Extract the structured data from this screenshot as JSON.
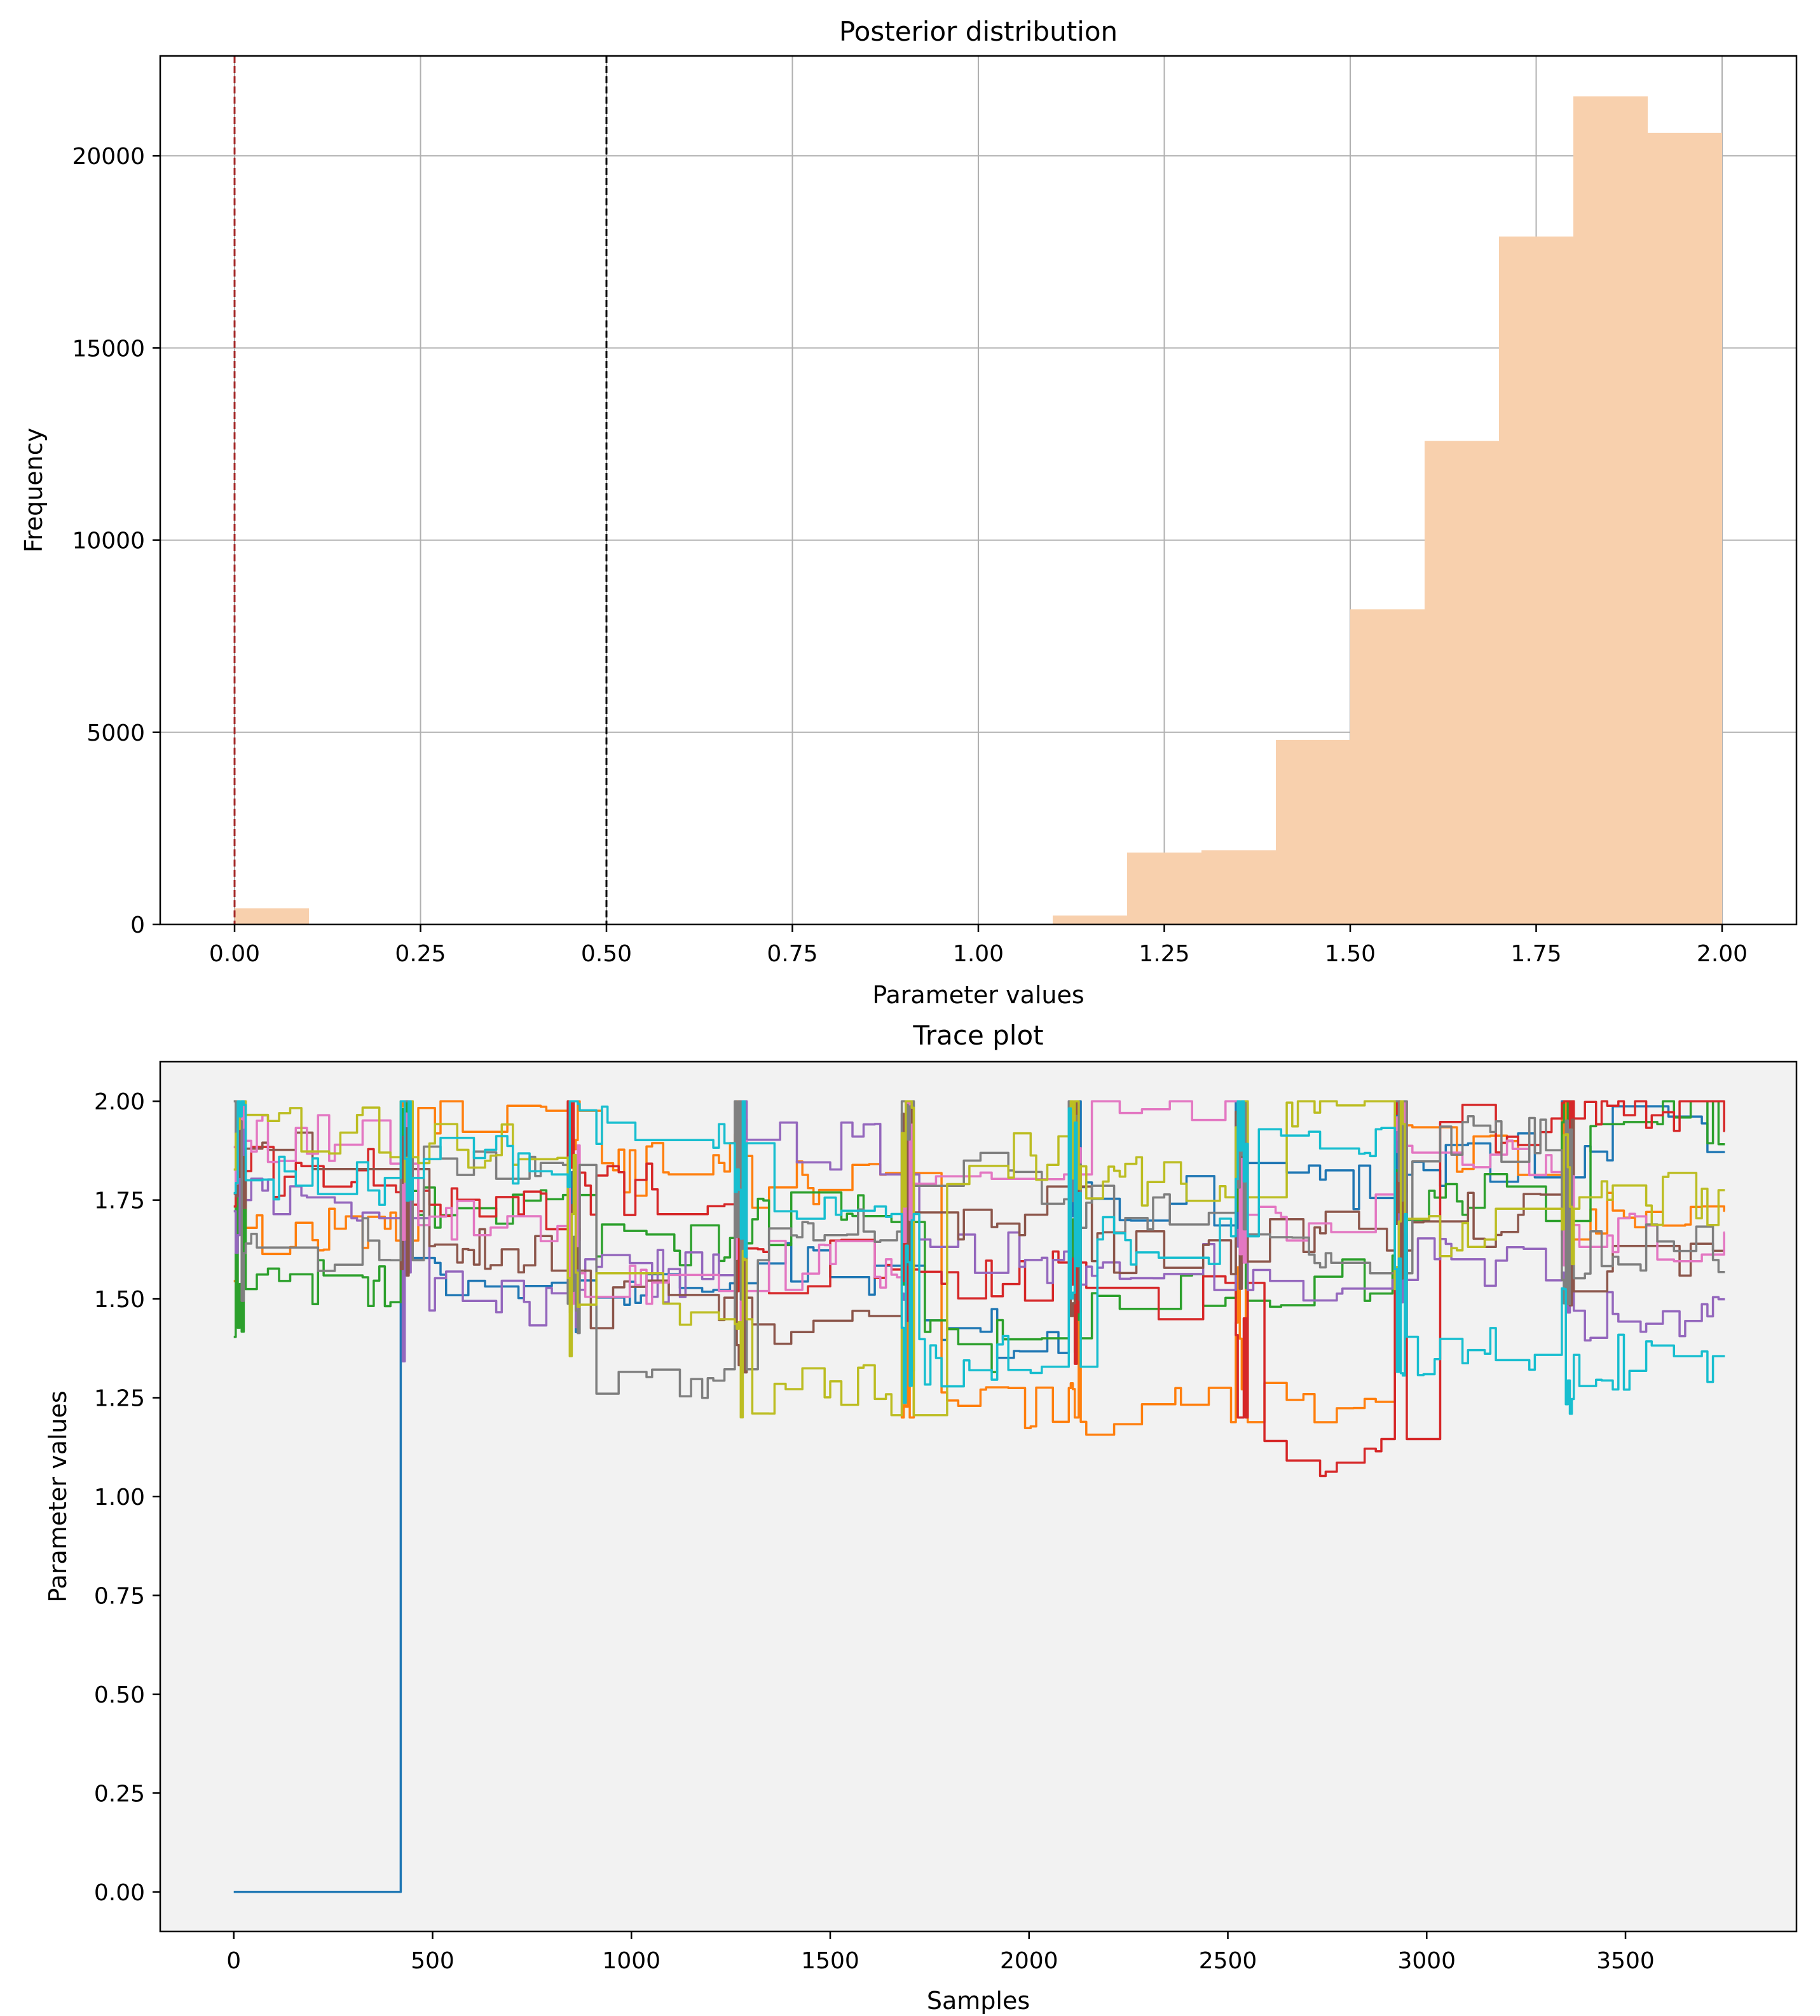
{
  "chart_data": [
    {
      "type": "bar",
      "title": "Posterior distribution",
      "xlabel": "Parameter values",
      "ylabel": "Frequency",
      "xlim": [
        -0.1,
        2.1
      ],
      "ylim": [
        0,
        22600
      ],
      "xticks": [
        "0.00",
        "0.25",
        "0.50",
        "0.75",
        "1.00",
        "1.25",
        "1.50",
        "1.75",
        "2.00"
      ],
      "xtick_values": [
        0,
        0.25,
        0.5,
        0.75,
        1.0,
        1.25,
        1.5,
        1.75,
        2.0
      ],
      "yticks": [
        "0",
        "5000",
        "10000",
        "15000",
        "20000"
      ],
      "ytick_values": [
        0,
        5000,
        10000,
        15000,
        20000
      ],
      "grid": true,
      "bar_color": "#f8d0ad",
      "bins": [
        {
          "x0": 0.0,
          "x1": 0.1,
          "value": 420
        },
        {
          "x0": 1.1,
          "x1": 1.2,
          "value": 230
        },
        {
          "x0": 1.2,
          "x1": 1.3,
          "value": 1870
        },
        {
          "x0": 1.3,
          "x1": 1.4,
          "value": 1930
        },
        {
          "x0": 1.4,
          "x1": 1.5,
          "value": 4800
        },
        {
          "x0": 1.5,
          "x1": 1.6,
          "value": 8200
        },
        {
          "x0": 1.6,
          "x1": 1.7,
          "value": 12580
        },
        {
          "x0": 1.7,
          "x1": 1.8,
          "value": 17900
        },
        {
          "x0": 1.8,
          "x1": 1.9,
          "value": 21550
        },
        {
          "x0": 1.9,
          "x1": 2.0,
          "value": 20600
        }
      ],
      "vlines": [
        {
          "x": 0.0,
          "color": "#a52a2a",
          "style": "dashed"
        },
        {
          "x": 0.5,
          "color": "#000000",
          "style": "dashed"
        }
      ]
    },
    {
      "type": "line",
      "title": "Trace plot",
      "xlabel": "Samples",
      "ylabel": "Parameter values",
      "xlim": [
        -185,
        3930
      ],
      "ylim": [
        -0.1,
        2.1
      ],
      "xticks": [
        "0",
        "500",
        "1000",
        "1500",
        "2000",
        "2500",
        "3000",
        "3500"
      ],
      "xtick_values": [
        0,
        500,
        1000,
        1500,
        2000,
        2500,
        3000,
        3500
      ],
      "yticks": [
        "0.00",
        "0.25",
        "0.50",
        "0.75",
        "1.00",
        "1.25",
        "1.50",
        "1.75",
        "2.00"
      ],
      "ytick_values": [
        0,
        0.25,
        0.5,
        0.75,
        1.0,
        1.25,
        1.5,
        1.75,
        2.0
      ],
      "grid": false,
      "background": "#f2f2f2",
      "n_samples": 3750,
      "segment_starts": [
        0,
        420,
        840,
        1260,
        1680,
        2100,
        2520,
        2920,
        3340
      ],
      "series": [
        {
          "color": "#1f77b4",
          "values": [
            0.0,
            1.55,
            1.52,
            1.58,
            1.42,
            1.75,
            1.78,
            1.85,
            1.92
          ]
        },
        {
          "color": "#ff7f0e",
          "values": [
            1.68,
            1.98,
            1.83,
            1.8,
            1.22,
            1.21,
            1.22,
            1.88,
            1.72
          ]
        },
        {
          "color": "#2ca02c",
          "values": [
            1.55,
            1.74,
            1.65,
            1.7,
            1.38,
            1.5,
            1.55,
            1.75,
            1.95
          ]
        },
        {
          "color": "#d62728",
          "values": [
            1.82,
            1.72,
            1.78,
            1.58,
            1.55,
            1.5,
            1.12,
            1.94,
            1.98
          ]
        },
        {
          "color": "#9467bd",
          "values": [
            1.75,
            1.5,
            1.56,
            1.88,
            1.6,
            1.58,
            1.55,
            1.6,
            1.45
          ]
        },
        {
          "color": "#8c564b",
          "values": [
            1.88,
            1.62,
            1.48,
            1.45,
            1.72,
            1.62,
            1.66,
            1.7,
            1.58
          ]
        },
        {
          "color": "#e377c2",
          "values": [
            1.9,
            1.68,
            1.52,
            1.58,
            1.76,
            1.99,
            1.7,
            1.84,
            1.65
          ]
        },
        {
          "color": "#7f7f7f",
          "values": [
            1.64,
            1.82,
            1.31,
            1.66,
            1.8,
            1.72,
            1.62,
            1.9,
            1.62
          ]
        },
        {
          "color": "#bcbd22",
          "values": [
            1.92,
            1.88,
            1.5,
            1.27,
            1.86,
            1.8,
            1.98,
            1.66,
            1.75
          ]
        },
        {
          "color": "#17becf",
          "values": [
            1.8,
            1.85,
            1.92,
            1.7,
            1.34,
            1.64,
            1.88,
            1.36,
            1.34
          ]
        }
      ]
    }
  ]
}
